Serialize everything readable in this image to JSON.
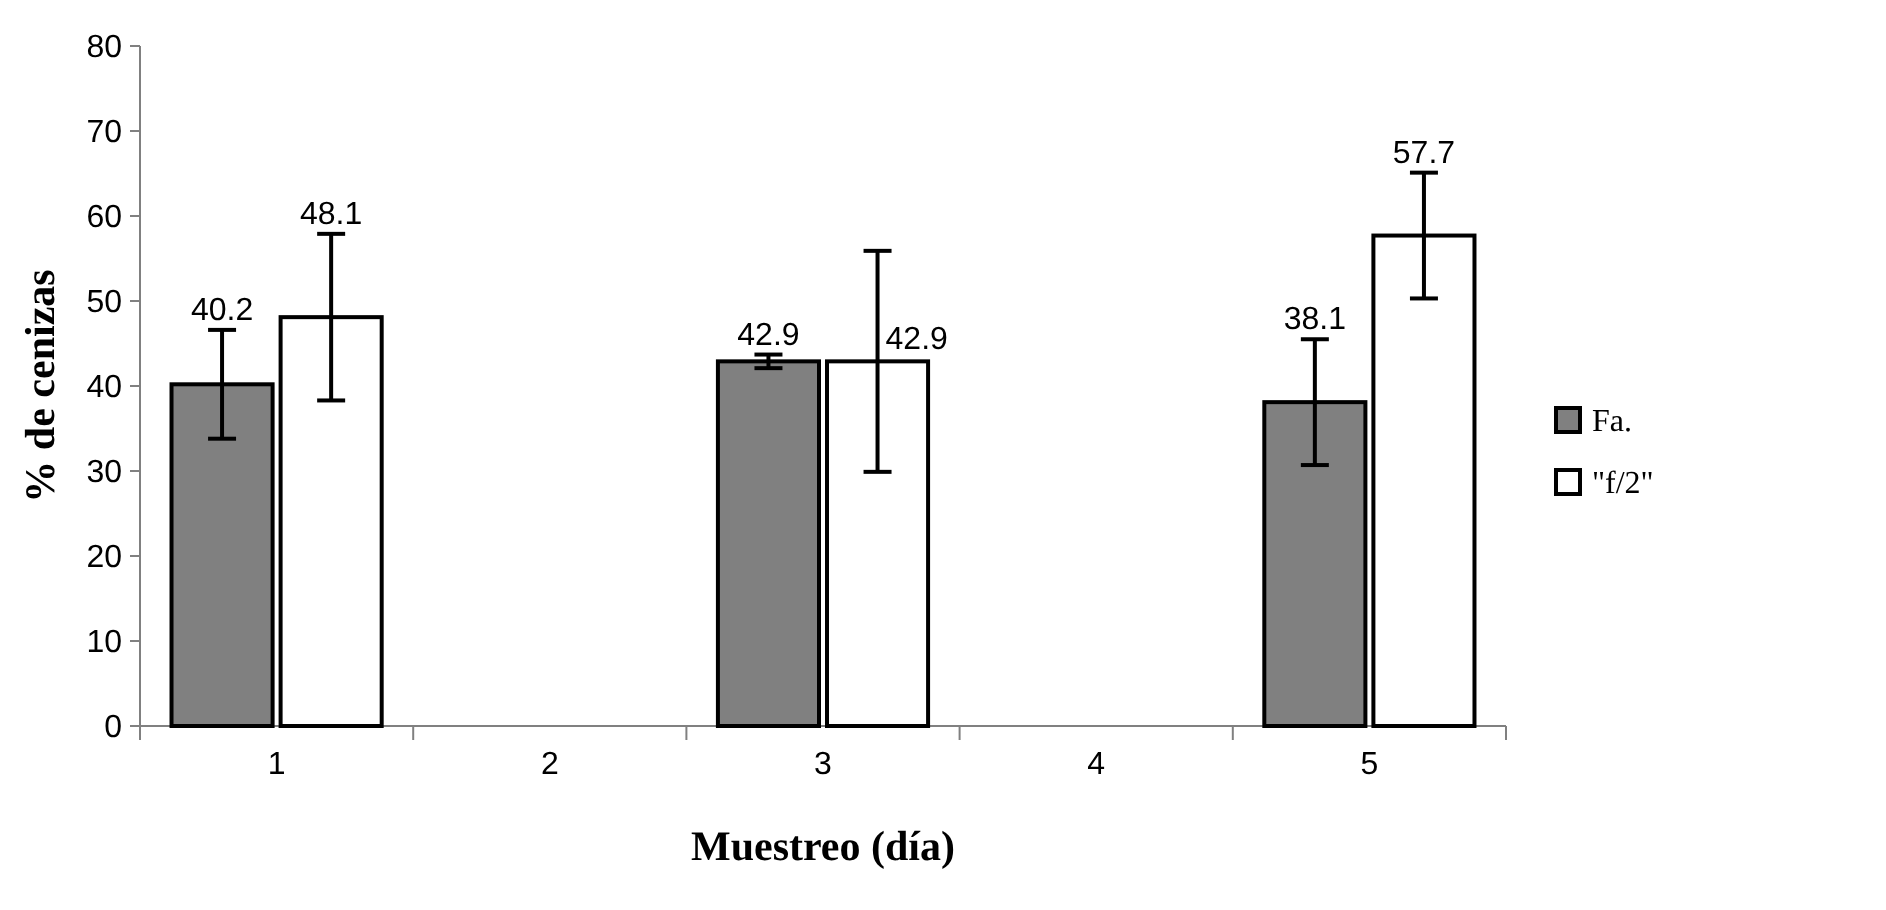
{
  "chart_data": {
    "type": "bar",
    "xlabel": "Muestreo (día)",
    "ylabel": "% de cenizas",
    "categories": [
      "1",
      "2",
      "3",
      "4",
      "5"
    ],
    "ylim": [
      0,
      80
    ],
    "yticks": [
      0,
      10,
      20,
      30,
      40,
      50,
      60,
      70,
      80
    ],
    "grid": false,
    "legend": "right",
    "data_labels": true,
    "series": [
      {
        "name": "Fa.",
        "color": "#808080",
        "values": [
          40.2,
          null,
          42.9,
          null,
          38.1
        ],
        "errors": [
          6.4,
          null,
          0.8,
          null,
          7.4
        ]
      },
      {
        "name": "\"f/2\"",
        "color": "#ffffff",
        "values": [
          48.1,
          null,
          42.9,
          null,
          57.7
        ],
        "errors": [
          9.8,
          null,
          13,
          null,
          7.4
        ]
      }
    ]
  }
}
